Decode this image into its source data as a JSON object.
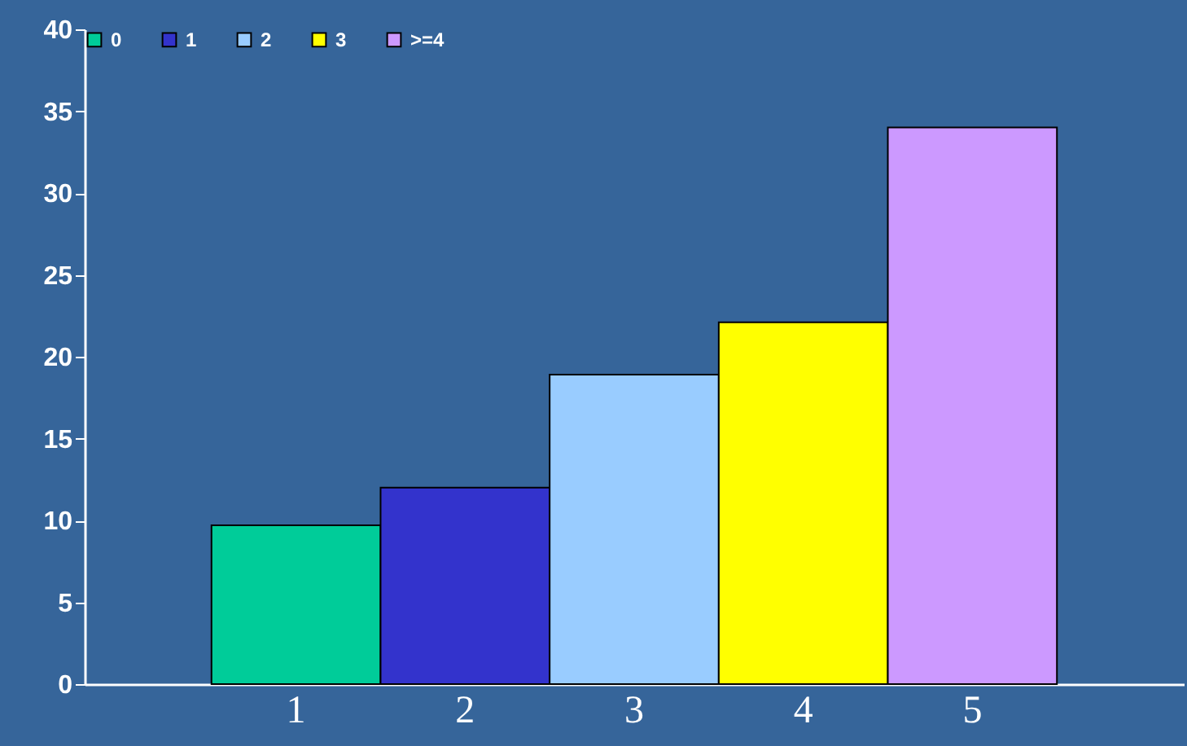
{
  "chart_data": {
    "type": "bar",
    "categories": [
      "1",
      "2",
      "3",
      "4",
      "5"
    ],
    "series": [
      {
        "name": "0",
        "color": "#00cc99",
        "values": [
          9.7,
          null,
          null,
          null,
          null
        ]
      },
      {
        "name": "1",
        "color": "#3333cc",
        "values": [
          null,
          12,
          null,
          null,
          null
        ]
      },
      {
        "name": "2",
        "color": "#99ccff",
        "values": [
          null,
          null,
          18.9,
          null,
          null
        ]
      },
      {
        "name": "3",
        "color": "#ffff00",
        "values": [
          null,
          null,
          null,
          22.1,
          null
        ]
      },
      {
        "name": ">=4",
        "color": "#cc99ff",
        "values": [
          null,
          null,
          null,
          null,
          34
        ]
      }
    ],
    "ylim": [
      0,
      40
    ],
    "yticks": [
      0,
      5,
      10,
      15,
      20,
      25,
      30,
      35,
      40
    ],
    "legend": "top left"
  }
}
